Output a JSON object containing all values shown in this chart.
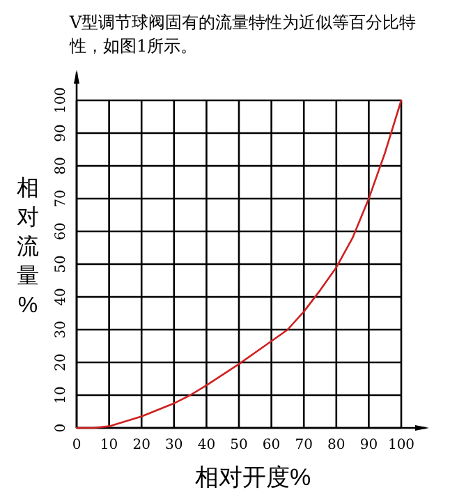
{
  "chart_data": {
    "type": "line",
    "title": "V型调节球阀固有的流量特性为近似等百分比特性，如图1所示。",
    "xlabel": "相对开度%",
    "ylabel": "相对流量%",
    "x": [
      0,
      5,
      10,
      20,
      30,
      35,
      40,
      50,
      60,
      65,
      70,
      75,
      80,
      85,
      90,
      95,
      100
    ],
    "series": [
      {
        "color": "#d02020",
        "values": [
          0,
          0,
          0.5,
          3.5,
          7.5,
          10,
          13,
          19.5,
          26.5,
          30,
          35.5,
          42,
          49,
          58,
          70,
          84,
          100
        ]
      }
    ],
    "xlim": [
      0,
      100
    ],
    "ylim": [
      0,
      100
    ],
    "xticks": [
      0,
      10,
      20,
      30,
      40,
      50,
      60,
      70,
      80,
      90,
      100
    ],
    "yticks": [
      0,
      10,
      20,
      30,
      40,
      50,
      60,
      70,
      80,
      90,
      100
    ],
    "grid": true,
    "marker": "none",
    "line_style": "solid"
  }
}
